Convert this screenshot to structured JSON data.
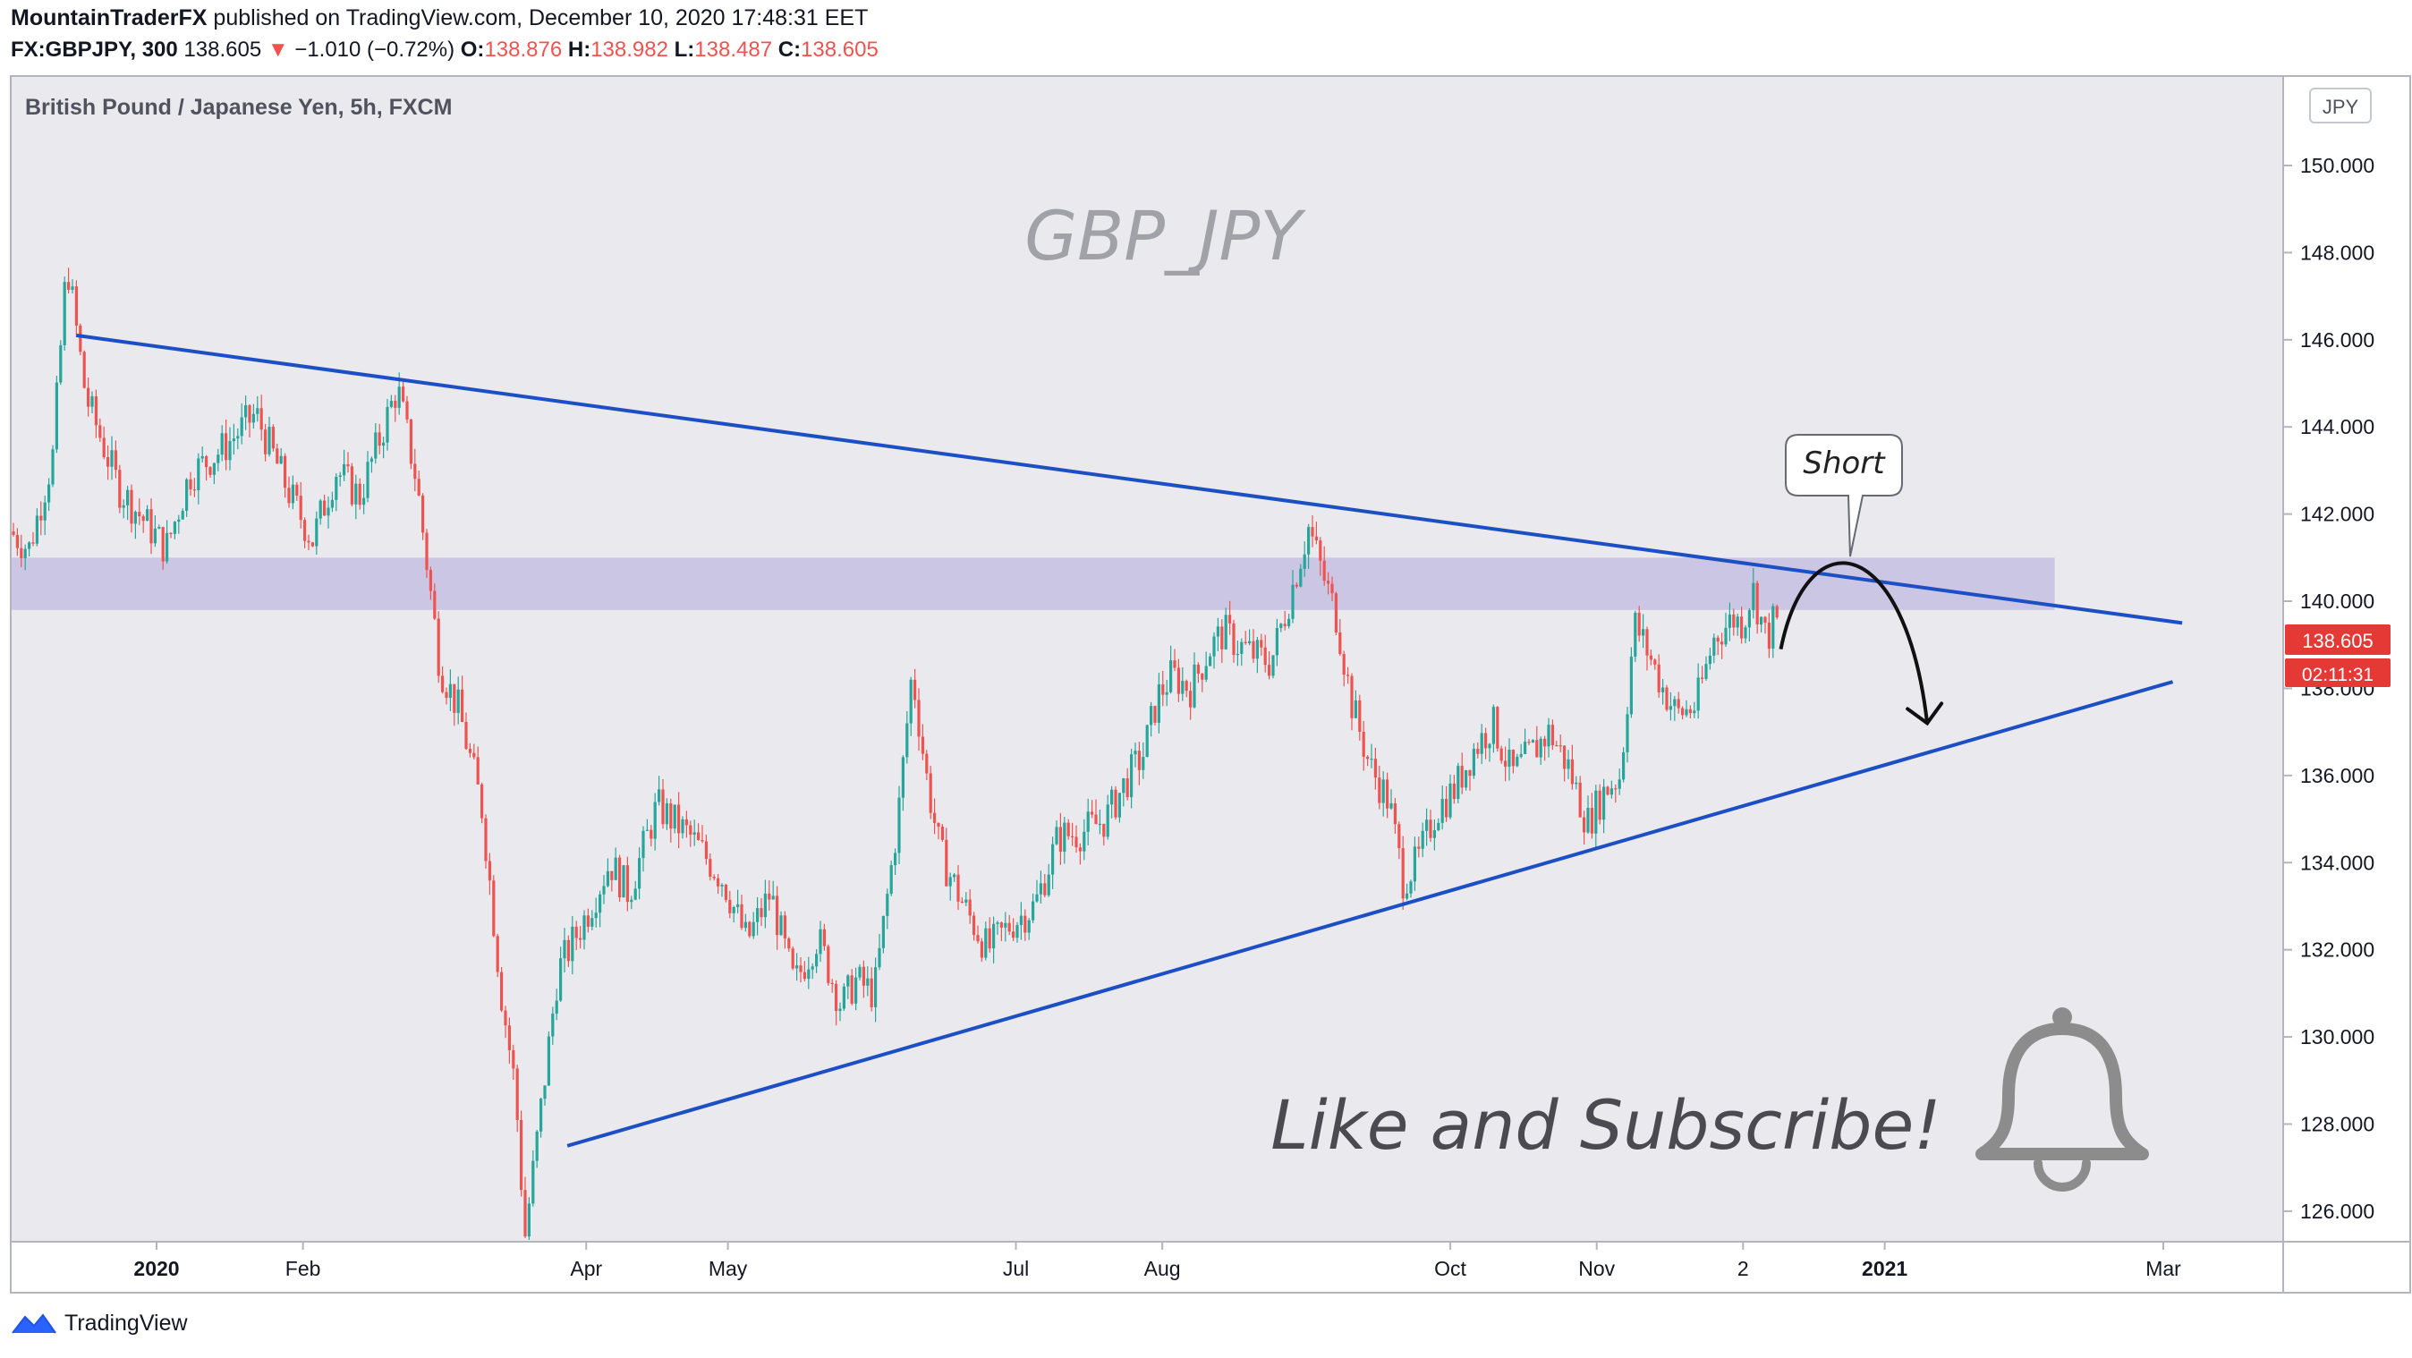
{
  "header": {
    "publisher": "MountainTraderFX",
    "published_text": "published on TradingView.com, December 10, 2020 17:48:31 EET",
    "symbol": "FX:GBPJPY, 300",
    "last": "138.605",
    "change_arrow": "▼",
    "change": "−1.010 (−0.72%)",
    "o_label": "O:",
    "o": "138.876",
    "h_label": "H:",
    "h": "138.982",
    "l_label": "L:",
    "l": "138.487",
    "c_label": "C:",
    "c": "138.605"
  },
  "footer": {
    "brand": "TradingView"
  },
  "colors": {
    "plot_bg": "#e9e9ee",
    "up": "#26a69a",
    "down": "#ef5350",
    "trendline": "#1d4fc4",
    "zone": "#c9c2e3",
    "price_label": "#e53935"
  },
  "chart_data": {
    "type": "candlestick",
    "title": "British Pound / Japanese Yen, 5h, FXCM",
    "watermark": "GBP_JPY",
    "currency": "JPY",
    "ylim": [
      125.3,
      150.8
    ],
    "y_ticks": [
      "150.000",
      "148.000",
      "146.000",
      "144.000",
      "142.000",
      "140.000",
      "138.000",
      "136.000",
      "134.000",
      "132.000",
      "130.000",
      "128.000",
      "126.000"
    ],
    "x_ticks": [
      "2020",
      "Feb",
      "Apr",
      "May",
      "Jul",
      "Aug",
      "Oct",
      "Nov",
      "2",
      "2021",
      "Mar"
    ],
    "x_tick_dates": [
      "2020-01-01",
      "2020-02-01",
      "2020-04-01",
      "2020-05-01",
      "2020-07-01",
      "2020-08-01",
      "2020-10-01",
      "2020-11-01",
      "2020-12-02",
      "2021-01-01",
      "2021-03-01"
    ],
    "bold_ticks": [
      "2020",
      "2021"
    ],
    "price_path": [
      {
        "date": "2019-12-01",
        "value": 141.6
      },
      {
        "date": "2019-12-05",
        "value": 141.2
      },
      {
        "date": "2019-12-10",
        "value": 143.3
      },
      {
        "date": "2019-12-13",
        "value": 147.8
      },
      {
        "date": "2019-12-17",
        "value": 144.7
      },
      {
        "date": "2019-12-24",
        "value": 142.6
      },
      {
        "date": "2020-01-03",
        "value": 141.2
      },
      {
        "date": "2020-01-08",
        "value": 142.9
      },
      {
        "date": "2020-01-15",
        "value": 143.5
      },
      {
        "date": "2020-01-22",
        "value": 144.3
      },
      {
        "date": "2020-01-29",
        "value": 142.5
      },
      {
        "date": "2020-02-03",
        "value": 141.4
      },
      {
        "date": "2020-02-08",
        "value": 143.0
      },
      {
        "date": "2020-02-13",
        "value": 142.4
      },
      {
        "date": "2020-02-21",
        "value": 144.9
      },
      {
        "date": "2020-02-25",
        "value": 142.8
      },
      {
        "date": "2020-03-01",
        "value": 138.5
      },
      {
        "date": "2020-03-05",
        "value": 137.5
      },
      {
        "date": "2020-03-10",
        "value": 135.2
      },
      {
        "date": "2020-03-14",
        "value": 131.0
      },
      {
        "date": "2020-03-17",
        "value": 128.8
      },
      {
        "date": "2020-03-19",
        "value": 125.4
      },
      {
        "date": "2020-03-22",
        "value": 128.0
      },
      {
        "date": "2020-03-26",
        "value": 131.5
      },
      {
        "date": "2020-04-01",
        "value": 132.8
      },
      {
        "date": "2020-04-06",
        "value": 134.0
      },
      {
        "date": "2020-04-10",
        "value": 133.3
      },
      {
        "date": "2020-04-16",
        "value": 135.3
      },
      {
        "date": "2020-04-23",
        "value": 134.6
      },
      {
        "date": "2020-04-30",
        "value": 133.6
      },
      {
        "date": "2020-05-05",
        "value": 132.2
      },
      {
        "date": "2020-05-10",
        "value": 133.3
      },
      {
        "date": "2020-05-15",
        "value": 131.2
      },
      {
        "date": "2020-05-20",
        "value": 132.3
      },
      {
        "date": "2020-05-25",
        "value": 130.7
      },
      {
        "date": "2020-05-28",
        "value": 131.3
      },
      {
        "date": "2020-06-01",
        "value": 131.0
      },
      {
        "date": "2020-06-03",
        "value": 132.6
      },
      {
        "date": "2020-06-06",
        "value": 135.0
      },
      {
        "date": "2020-06-09",
        "value": 138.4
      },
      {
        "date": "2020-06-12",
        "value": 136.0
      },
      {
        "date": "2020-06-15",
        "value": 134.2
      },
      {
        "date": "2020-06-20",
        "value": 133.0
      },
      {
        "date": "2020-06-25",
        "value": 132.0
      },
      {
        "date": "2020-06-30",
        "value": 132.6
      },
      {
        "date": "2020-07-05",
        "value": 133.0
      },
      {
        "date": "2020-07-10",
        "value": 134.6
      },
      {
        "date": "2020-07-15",
        "value": 134.7
      },
      {
        "date": "2020-07-20",
        "value": 135.0
      },
      {
        "date": "2020-07-24",
        "value": 135.8
      },
      {
        "date": "2020-07-28",
        "value": 136.5
      },
      {
        "date": "2020-07-31",
        "value": 137.8
      },
      {
        "date": "2020-08-03",
        "value": 138.3
      },
      {
        "date": "2020-08-07",
        "value": 138.0
      },
      {
        "date": "2020-08-11",
        "value": 138.9
      },
      {
        "date": "2020-08-14",
        "value": 139.3
      },
      {
        "date": "2020-08-17",
        "value": 139.0
      },
      {
        "date": "2020-08-20",
        "value": 138.8
      },
      {
        "date": "2020-08-24",
        "value": 138.6
      },
      {
        "date": "2020-08-28",
        "value": 140.1
      },
      {
        "date": "2020-09-01",
        "value": 141.7
      },
      {
        "date": "2020-09-04",
        "value": 140.6
      },
      {
        "date": "2020-09-07",
        "value": 139.6
      },
      {
        "date": "2020-09-10",
        "value": 137.7
      },
      {
        "date": "2020-09-14",
        "value": 136.2
      },
      {
        "date": "2020-09-18",
        "value": 135.4
      },
      {
        "date": "2020-09-21",
        "value": 133.6
      },
      {
        "date": "2020-09-24",
        "value": 134.0
      },
      {
        "date": "2020-09-28",
        "value": 135.2
      },
      {
        "date": "2020-10-02",
        "value": 135.7
      },
      {
        "date": "2020-10-06",
        "value": 136.6
      },
      {
        "date": "2020-10-10",
        "value": 137.2
      },
      {
        "date": "2020-10-14",
        "value": 136.0
      },
      {
        "date": "2020-10-18",
        "value": 136.5
      },
      {
        "date": "2020-10-22",
        "value": 137.0
      },
      {
        "date": "2020-10-26",
        "value": 136.2
      },
      {
        "date": "2020-10-30",
        "value": 134.9
      },
      {
        "date": "2020-11-03",
        "value": 135.7
      },
      {
        "date": "2020-11-06",
        "value": 136.0
      },
      {
        "date": "2020-11-09",
        "value": 139.5
      },
      {
        "date": "2020-11-12",
        "value": 138.8
      },
      {
        "date": "2020-11-15",
        "value": 138.0
      },
      {
        "date": "2020-11-18",
        "value": 137.4
      },
      {
        "date": "2020-11-22",
        "value": 137.6
      },
      {
        "date": "2020-11-26",
        "value": 139.2
      },
      {
        "date": "2020-11-30",
        "value": 139.6
      },
      {
        "date": "2020-12-02",
        "value": 139.5
      },
      {
        "date": "2020-12-04",
        "value": 140.3
      },
      {
        "date": "2020-12-07",
        "value": 139.1
      },
      {
        "date": "2020-12-09",
        "value": 139.7
      },
      {
        "date": "2020-12-10",
        "value": 138.6
      }
    ],
    "last_price_label": "138.605",
    "countdown_label": "02:11:31",
    "annotations": [
      {
        "kind": "trendline",
        "name": "upper",
        "from": {
          "date": "2019-12-15",
          "value": 146.1
        },
        "to": {
          "date": "2021-03-05",
          "value": 139.5
        }
      },
      {
        "kind": "trendline",
        "name": "lower",
        "from": {
          "date": "2020-03-28",
          "value": 127.5
        },
        "to": {
          "date": "2021-03-03",
          "value": 138.15
        }
      },
      {
        "kind": "zone",
        "from_date": "2019-12-01",
        "to_date": "2021-02-06",
        "low": 139.8,
        "high": 141.0
      },
      {
        "kind": "callout",
        "text": "Short",
        "date": "2020-12-29",
        "value": 140.2
      },
      {
        "kind": "arrow",
        "from": {
          "date": "2020-12-10",
          "value": 138.9
        },
        "peak": {
          "date": "2020-12-25",
          "value": 140.1
        },
        "to": {
          "date": "2021-01-10",
          "value": 137.2
        }
      },
      {
        "kind": "text",
        "text": "Like and Subscribe!"
      }
    ]
  }
}
